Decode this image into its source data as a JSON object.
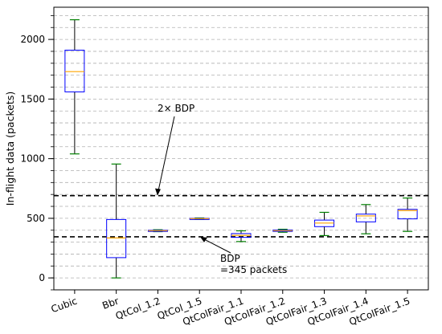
{
  "chart_data": {
    "type": "box",
    "xlabel": "",
    "ylabel": "In-flight data (packets)",
    "ylim": [
      -100,
      2270
    ],
    "yticks": [
      0,
      500,
      1000,
      1500,
      2000
    ],
    "grid": "horizontal dashed minor lines",
    "categories": [
      "Cubic",
      "Bbr",
      "QtCol_1.2",
      "QtCol_1.5",
      "QtColFair_1.1",
      "QtColFair_1.2",
      "QtColFair_1.3",
      "QtColFair_1.4",
      "QtColFair_1.5"
    ],
    "boxes": [
      {
        "whisker_low": 1040,
        "q1": 1560,
        "median": 1730,
        "q3": 1910,
        "whisker_high": 2165
      },
      {
        "whisker_low": 0,
        "q1": 170,
        "median": 335,
        "q3": 490,
        "whisker_high": 955
      },
      {
        "whisker_low": 388,
        "q1": 392,
        "median": 396,
        "q3": 400,
        "whisker_high": 404
      },
      {
        "whisker_low": 490,
        "q1": 494,
        "median": 497,
        "q3": 500,
        "whisker_high": 503
      },
      {
        "whisker_low": 305,
        "q1": 340,
        "median": 357,
        "q3": 372,
        "whisker_high": 395
      },
      {
        "whisker_low": 383,
        "q1": 390,
        "median": 396,
        "q3": 402,
        "whisker_high": 408
      },
      {
        "whisker_low": 355,
        "q1": 430,
        "median": 460,
        "q3": 485,
        "whisker_high": 550
      },
      {
        "whisker_low": 370,
        "q1": 470,
        "median": 520,
        "q3": 535,
        "whisker_high": 615
      },
      {
        "whisker_low": 390,
        "q1": 495,
        "median": 565,
        "q3": 575,
        "whisker_high": 670
      }
    ],
    "hlines": [
      {
        "y": 690,
        "style": "dashed",
        "color": "#000000"
      },
      {
        "y": 345,
        "style": "dashed",
        "color": "#000000"
      }
    ],
    "annotations": [
      {
        "text": "2× BDP",
        "target_y": 690
      },
      {
        "text": "BDP",
        "text2": "=345 packets",
        "target_y": 345
      }
    ],
    "colors": {
      "box": "#0000ff",
      "median": "#ffa500",
      "whisker": "#000000",
      "cap": "#008000",
      "grid": "#b0b0b0"
    }
  }
}
